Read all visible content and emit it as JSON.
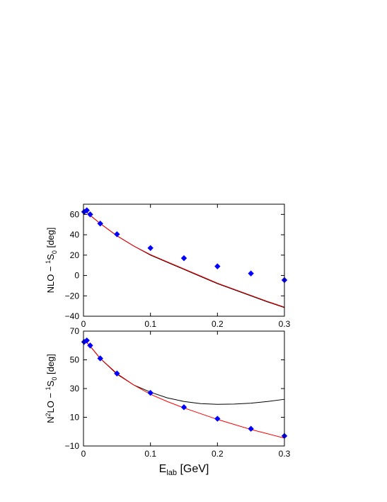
{
  "chart_data": [
    {
      "type": "line",
      "panel": "top",
      "ylabel_main": "NLO − ",
      "ylabel_sup": "1",
      "ylabel_sym": "S",
      "ylabel_sub": "0",
      "ylabel_unit": " [deg]",
      "xlim": [
        0,
        0.3
      ],
      "ylim": [
        -40,
        70
      ],
      "xticks": [
        0,
        0.1,
        0.2,
        0.3
      ],
      "xtick_labels": [
        "0",
        "0.1",
        "0.2",
        "0.3"
      ],
      "yticks": [
        -40,
        -20,
        0,
        20,
        40,
        60
      ],
      "ytick_labels": [
        "−40",
        "−20",
        "0",
        "20",
        "40",
        "60"
      ],
      "grid": false,
      "series": [
        {
          "color": "#000000",
          "style": "line",
          "x": [
            0.001,
            0.005,
            0.01,
            0.025,
            0.05,
            0.075,
            0.1,
            0.125,
            0.15,
            0.175,
            0.2,
            0.225,
            0.25,
            0.275,
            0.3
          ],
          "y": [
            63,
            62,
            59,
            51,
            39,
            29,
            20,
            13,
            6,
            -1,
            -8,
            -14,
            -20,
            -26,
            -31.5
          ]
        },
        {
          "color": "#ff0000",
          "style": "line",
          "x": [
            0.001,
            0.005,
            0.01,
            0.025,
            0.05,
            0.075,
            0.1,
            0.125,
            0.15,
            0.175,
            0.2,
            0.225,
            0.25,
            0.275,
            0.3
          ],
          "y": [
            63,
            62,
            59,
            51,
            39,
            29,
            20.5,
            13.5,
            6.5,
            -0.5,
            -7.5,
            -13.5,
            -19.5,
            -25.5,
            -31
          ]
        },
        {
          "color": "#0000ff",
          "style": "diamond",
          "x": [
            0.001,
            0.005,
            0.01,
            0.025,
            0.05,
            0.1,
            0.15,
            0.2,
            0.25,
            0.3
          ],
          "y": [
            62.5,
            64,
            60,
            51,
            40.5,
            27,
            17,
            9,
            2,
            -4.5
          ]
        }
      ]
    },
    {
      "type": "line",
      "panel": "bottom",
      "ylabel_pre": "N",
      "ylabel_pre_sup": "2",
      "ylabel_main": "LO − ",
      "ylabel_sup": "1",
      "ylabel_sym": "S",
      "ylabel_sub": "0",
      "ylabel_unit": " [deg]",
      "xlabel_main": "E",
      "xlabel_sub": "lab",
      "xlabel_unit": " [GeV]",
      "xlim": [
        0,
        0.3
      ],
      "ylim": [
        -10,
        70
      ],
      "xticks": [
        0,
        0.1,
        0.2,
        0.3
      ],
      "xtick_labels": [
        "0",
        "0.1",
        "0.2",
        "0.3"
      ],
      "yticks": [
        -10,
        10,
        30,
        50,
        70
      ],
      "ytick_labels": [
        "−10",
        "10",
        "30",
        "50",
        "70"
      ],
      "grid": false,
      "series": [
        {
          "color": "#000000",
          "style": "line",
          "x": [
            0.001,
            0.005,
            0.01,
            0.025,
            0.05,
            0.075,
            0.1,
            0.125,
            0.15,
            0.175,
            0.2,
            0.225,
            0.25,
            0.275,
            0.3
          ],
          "y": [
            63,
            62,
            59.5,
            51,
            40,
            32.5,
            27.5,
            23.5,
            21,
            19.5,
            19,
            19.2,
            19.8,
            21,
            22.5
          ]
        },
        {
          "color": "#ff0000",
          "style": "line",
          "x": [
            0.001,
            0.005,
            0.01,
            0.025,
            0.05,
            0.075,
            0.1,
            0.125,
            0.15,
            0.175,
            0.2,
            0.225,
            0.25,
            0.275,
            0.3
          ],
          "y": [
            63,
            62,
            59.5,
            51,
            40.5,
            32.5,
            26,
            21,
            16.5,
            12.5,
            8.5,
            5,
            1.5,
            -1.5,
            -4.5
          ]
        },
        {
          "color": "#0000ff",
          "style": "diamond",
          "x": [
            0.001,
            0.005,
            0.01,
            0.025,
            0.05,
            0.1,
            0.15,
            0.2,
            0.25,
            0.3
          ],
          "y": [
            62.5,
            63.5,
            60,
            51,
            40.5,
            27,
            17,
            9,
            2,
            -3
          ]
        }
      ]
    }
  ]
}
